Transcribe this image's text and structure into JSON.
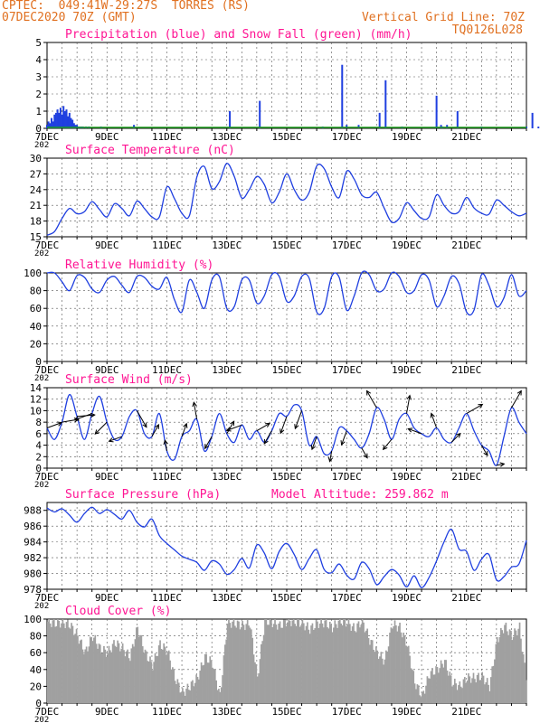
{
  "header": {
    "line1": "CPTEC:  049:41W-29:27S  TORRES (RS)",
    "line2": "07DEC2020 70Z (GMT)",
    "right1": "Vertical Grid Line: 70Z",
    "right2": "TQ0126L028"
  },
  "colors": {
    "header": "#e07020",
    "title": "#ff1493",
    "line": "#1f3fe0",
    "snow": "#1a9a1a",
    "cloud": "#a0a0a0",
    "axis": "#000000",
    "grid": "#555555"
  },
  "x_axis": {
    "labels": [
      "7DEC",
      "9DEC",
      "11DEC",
      "13DEC",
      "15DEC",
      "17DEC",
      "19DEC",
      "21DEC"
    ],
    "year_stub": "202"
  },
  "chart_data": [
    {
      "type": "bar",
      "title": "Precipitation (blue) and Snow Fall (green) (mm/h)",
      "ylim": [
        0,
        5
      ],
      "yticks": [
        "0",
        "1",
        "2",
        "3",
        "4",
        "5"
      ],
      "x_unit": "days since 7DEC 00Z",
      "series": [
        {
          "name": "Precipitation",
          "color": "#1f3fe0",
          "x": [
            0.0,
            0.05,
            0.1,
            0.15,
            0.2,
            0.25,
            0.3,
            0.35,
            0.4,
            0.45,
            0.5,
            0.55,
            0.6,
            0.65,
            0.7,
            0.75,
            0.8,
            0.85,
            0.9,
            0.95,
            1.0,
            1.05,
            1.1,
            1.15,
            1.2,
            1.3,
            1.4,
            1.8,
            2.9,
            6.1,
            7.1,
            9.2,
            9.85,
            10.0,
            10.4,
            11.1,
            11.3,
            11.85,
            13.0,
            13.15,
            13.2,
            13.35,
            13.7,
            14.5,
            16.0,
            16.2,
            16.4
          ],
          "values": [
            0.2,
            0.4,
            0.3,
            0.6,
            0.4,
            0.8,
            0.9,
            1.1,
            0.9,
            1.2,
            0.8,
            1.3,
            1.0,
            1.1,
            0.7,
            0.9,
            0.6,
            0.5,
            0.3,
            0.2,
            0.2,
            0.1,
            0.1,
            0.1,
            0.1,
            0.1,
            0.1,
            0.1,
            0.2,
            1.0,
            1.6,
            0.1,
            3.7,
            0.2,
            0.2,
            0.9,
            2.8,
            0.1,
            1.9,
            0.2,
            0.1,
            0.2,
            1.0,
            0.1,
            0.1,
            0.9,
            0.1
          ]
        },
        {
          "name": "Snow Fall",
          "color": "#1a9a1a",
          "x": [
            0,
            16
          ],
          "values": [
            0,
            0
          ]
        }
      ]
    },
    {
      "type": "line",
      "title": "Surface Temperature (nC)",
      "ylim": [
        15,
        30
      ],
      "yticks": [
        "15",
        "18",
        "21",
        "24",
        "27",
        "30"
      ],
      "x": [
        0,
        0.25,
        0.5,
        0.75,
        1,
        1.25,
        1.5,
        1.75,
        2,
        2.25,
        2.5,
        2.75,
        3,
        3.25,
        3.5,
        3.75,
        4,
        4.25,
        4.5,
        4.75,
        5,
        5.25,
        5.5,
        5.75,
        6,
        6.25,
        6.5,
        6.75,
        7,
        7.25,
        7.5,
        7.75,
        8,
        8.25,
        8.5,
        8.75,
        9,
        9.25,
        9.5,
        9.75,
        10,
        10.25,
        10.5,
        10.75,
        11,
        11.25,
        11.5,
        11.75,
        12,
        12.25,
        12.5,
        12.75,
        13,
        13.25,
        13.5,
        13.75,
        14,
        14.25,
        14.5,
        14.75,
        15,
        15.25,
        15.5,
        15.75,
        16
      ],
      "series": [
        {
          "name": "Temperature",
          "color": "#1f3fe0",
          "values": [
            15.3,
            16.0,
            18.5,
            20.4,
            19.4,
            19.8,
            21.7,
            20.2,
            18.8,
            21.3,
            20.4,
            19.0,
            21.8,
            20.4,
            18.8,
            18.8,
            24.5,
            22.3,
            19.5,
            19.0,
            26.4,
            28.4,
            24.2,
            25.5,
            29.0,
            26.5,
            22.4,
            24.0,
            26.5,
            25.0,
            21.5,
            23.5,
            27.0,
            24.0,
            22.0,
            23.5,
            28.5,
            28.0,
            24.5,
            22.5,
            27.5,
            26.0,
            23.0,
            22.5,
            23.5,
            20.5,
            17.8,
            18.5,
            21.5,
            20.0,
            18.5,
            18.8,
            23.0,
            21.0,
            19.5,
            19.8,
            22.5,
            20.5,
            19.5,
            19.3,
            22.0,
            21.0,
            19.8,
            19.0,
            19.5
          ]
        }
      ]
    },
    {
      "type": "line",
      "title": "Relative Humidity (%)",
      "ylim": [
        0,
        100
      ],
      "yticks": [
        "0",
        "20",
        "40",
        "60",
        "80",
        "100"
      ],
      "x": [
        0,
        0.25,
        0.5,
        0.75,
        1,
        1.25,
        1.5,
        1.75,
        2,
        2.25,
        2.5,
        2.75,
        3,
        3.25,
        3.5,
        3.75,
        4,
        4.25,
        4.5,
        4.75,
        5,
        5.25,
        5.5,
        5.75,
        6,
        6.25,
        6.5,
        6.75,
        7,
        7.25,
        7.5,
        7.75,
        8,
        8.25,
        8.5,
        8.75,
        9,
        9.25,
        9.5,
        9.75,
        10,
        10.25,
        10.5,
        10.75,
        11,
        11.25,
        11.5,
        11.75,
        12,
        12.25,
        12.5,
        12.75,
        13,
        13.25,
        13.5,
        13.75,
        14,
        14.25,
        14.5,
        14.75,
        15,
        15.25,
        15.5,
        15.75,
        16
      ],
      "series": [
        {
          "name": "Relative Humidity",
          "color": "#1f3fe0",
          "values": [
            100,
            100,
            90,
            80,
            97,
            95,
            82,
            78,
            92,
            96,
            86,
            78,
            96,
            95,
            85,
            82,
            95,
            70,
            56,
            92,
            78,
            60,
            92,
            96,
            60,
            62,
            92,
            92,
            66,
            74,
            98,
            96,
            68,
            74,
            96,
            94,
            56,
            60,
            96,
            95,
            58,
            74,
            100,
            98,
            80,
            82,
            100,
            96,
            78,
            80,
            98,
            92,
            62,
            74,
            96,
            88,
            56,
            58,
            98,
            86,
            62,
            72,
            98,
            74,
            80
          ]
        }
      ]
    },
    {
      "type": "line",
      "title": "Surface Wind (m/s)",
      "ylim": [
        0,
        14
      ],
      "yticks": [
        "0",
        "2",
        "4",
        "6",
        "8",
        "10",
        "12",
        "14"
      ],
      "x": [
        0,
        0.25,
        0.5,
        0.75,
        1,
        1.25,
        1.5,
        1.75,
        2,
        2.25,
        2.5,
        2.75,
        3,
        3.25,
        3.5,
        3.75,
        4,
        4.25,
        4.5,
        4.75,
        5,
        5.25,
        5.5,
        5.75,
        6,
        6.25,
        6.5,
        6.75,
        7,
        7.25,
        7.5,
        7.75,
        8,
        8.25,
        8.5,
        8.75,
        9,
        9.25,
        9.5,
        9.75,
        10,
        10.25,
        10.5,
        10.75,
        11,
        11.25,
        11.5,
        11.75,
        12,
        12.25,
        12.5,
        12.75,
        13,
        13.25,
        13.5,
        13.75,
        14,
        14.25,
        14.5,
        14.75,
        15,
        15.25,
        15.5,
        15.75,
        16
      ],
      "series": [
        {
          "name": "Wind Speed",
          "color": "#1f3fe0",
          "values": [
            7.0,
            5.0,
            8.0,
            12.8,
            9.0,
            5.0,
            9.5,
            12.5,
            8.0,
            5.0,
            5.5,
            9.0,
            10.0,
            6.0,
            5.5,
            9.5,
            3.0,
            1.5,
            5.5,
            6.5,
            8.5,
            3.0,
            5.5,
            9.5,
            6.0,
            4.5,
            7.5,
            5.0,
            6.5,
            4.5,
            6.5,
            9.5,
            9.0,
            11.0,
            10.0,
            4.0,
            5.5,
            2.5,
            3.0,
            7.0,
            6.5,
            5.0,
            3.5,
            6.0,
            10.5,
            8.5,
            5.0,
            8.5,
            9.5,
            7.0,
            6.0,
            5.5,
            7.0,
            5.0,
            4.5,
            7.0,
            9.5,
            6.5,
            4.0,
            3.0,
            0.5,
            5.5,
            10.5,
            8.0,
            6.0
          ]
        }
      ]
    },
    {
      "type": "line",
      "title": "Surface Pressure (hPa)",
      "annotation": "Model Altitude: 259.862 m",
      "ylim": [
        978,
        989
      ],
      "yticks": [
        "978",
        "980",
        "982",
        "984",
        "986",
        "988"
      ],
      "x": [
        0,
        0.25,
        0.5,
        0.75,
        1,
        1.25,
        1.5,
        1.75,
        2,
        2.25,
        2.5,
        2.75,
        3,
        3.25,
        3.5,
        3.75,
        4,
        4.25,
        4.5,
        4.75,
        5,
        5.25,
        5.5,
        5.75,
        6,
        6.25,
        6.5,
        6.75,
        7,
        7.25,
        7.5,
        7.75,
        8,
        8.25,
        8.5,
        8.75,
        9,
        9.25,
        9.5,
        9.75,
        10,
        10.25,
        10.5,
        10.75,
        11,
        11.25,
        11.5,
        11.75,
        12,
        12.25,
        12.5,
        12.75,
        13,
        13.25,
        13.5,
        13.75,
        14,
        14.25,
        14.5,
        14.75,
        15,
        15.25,
        15.5,
        15.75,
        16
      ],
      "series": [
        {
          "name": "Pressure",
          "color": "#1f3fe0",
          "values": [
            988.3,
            987.8,
            988.2,
            987.4,
            986.5,
            987.6,
            988.4,
            987.6,
            988.1,
            987.5,
            986.9,
            988.0,
            986.5,
            985.9,
            986.9,
            984.8,
            983.8,
            983.0,
            982.2,
            981.8,
            981.4,
            980.4,
            981.6,
            981.2,
            979.9,
            980.5,
            981.9,
            980.7,
            983.6,
            982.6,
            980.6,
            982.8,
            983.8,
            982.4,
            980.5,
            981.9,
            983.0,
            980.5,
            980.1,
            981.2,
            979.8,
            979.3,
            981.4,
            980.6,
            978.6,
            979.6,
            980.5,
            979.8,
            978.3,
            979.7,
            978.2,
            979.5,
            981.6,
            984.0,
            985.6,
            983.1,
            982.8,
            980.4,
            981.8,
            982.4,
            979.2,
            979.6,
            980.8,
            981.2,
            984.2
          ]
        }
      ]
    },
    {
      "type": "bar",
      "title": "Cloud Cover (%)",
      "ylim": [
        0,
        100
      ],
      "yticks": [
        "0",
        "20",
        "40",
        "60",
        "80",
        "100"
      ],
      "x": [
        0,
        0.25,
        0.5,
        0.75,
        1,
        1.25,
        1.5,
        1.75,
        2,
        2.25,
        2.5,
        2.75,
        3,
        3.25,
        3.5,
        3.75,
        4,
        4.25,
        4.5,
        4.75,
        5,
        5.25,
        5.5,
        5.75,
        6,
        6.25,
        6.5,
        6.75,
        7,
        7.25,
        7.5,
        7.75,
        8,
        8.25,
        8.5,
        8.75,
        9,
        9.25,
        9.5,
        9.75,
        10,
        10.25,
        10.5,
        10.75,
        11,
        11.25,
        11.5,
        11.75,
        12,
        12.25,
        12.5,
        12.75,
        13,
        13.25,
        13.5,
        13.75,
        14,
        14.25,
        14.5,
        14.75,
        15,
        15.25,
        15.5,
        15.75,
        16
      ],
      "series": [
        {
          "name": "Cloud Cover",
          "color": "#a0a0a0",
          "values": [
            97,
            95,
            96,
            93,
            80,
            60,
            80,
            65,
            60,
            72,
            65,
            55,
            90,
            60,
            45,
            70,
            62,
            30,
            12,
            20,
            30,
            55,
            48,
            8,
            96,
            95,
            92,
            95,
            30,
            98,
            96,
            92,
            98,
            97,
            95,
            88,
            95,
            96,
            90,
            98,
            96,
            88,
            98,
            75,
            60,
            50,
            94,
            90,
            70,
            25,
            8,
            35,
            40,
            50,
            25,
            20,
            30,
            30,
            32,
            20,
            75,
            92,
            80,
            90,
            20
          ]
        }
      ]
    },
    {
      "type": "vector",
      "title": "Surface Wind direction (arrows)",
      "x": [
        0,
        0.5,
        1,
        1.5,
        2,
        2.5,
        3,
        3.5,
        4,
        4.5,
        5,
        5.5,
        6,
        6.5,
        7,
        7.5,
        8,
        8.5,
        9,
        9.5,
        10,
        10.5,
        11,
        11.5,
        12,
        12.5,
        13,
        13.5,
        14,
        14.5,
        15,
        15.5
      ],
      "angle_deg": [
        20,
        10,
        5,
        200,
        225,
        200,
        300,
        60,
        100,
        70,
        100,
        240,
        60,
        200,
        30,
        240,
        250,
        250,
        250,
        260,
        250,
        300,
        120,
        230,
        80,
        160,
        110,
        45,
        30,
        300,
        10,
        60
      ]
    }
  ]
}
